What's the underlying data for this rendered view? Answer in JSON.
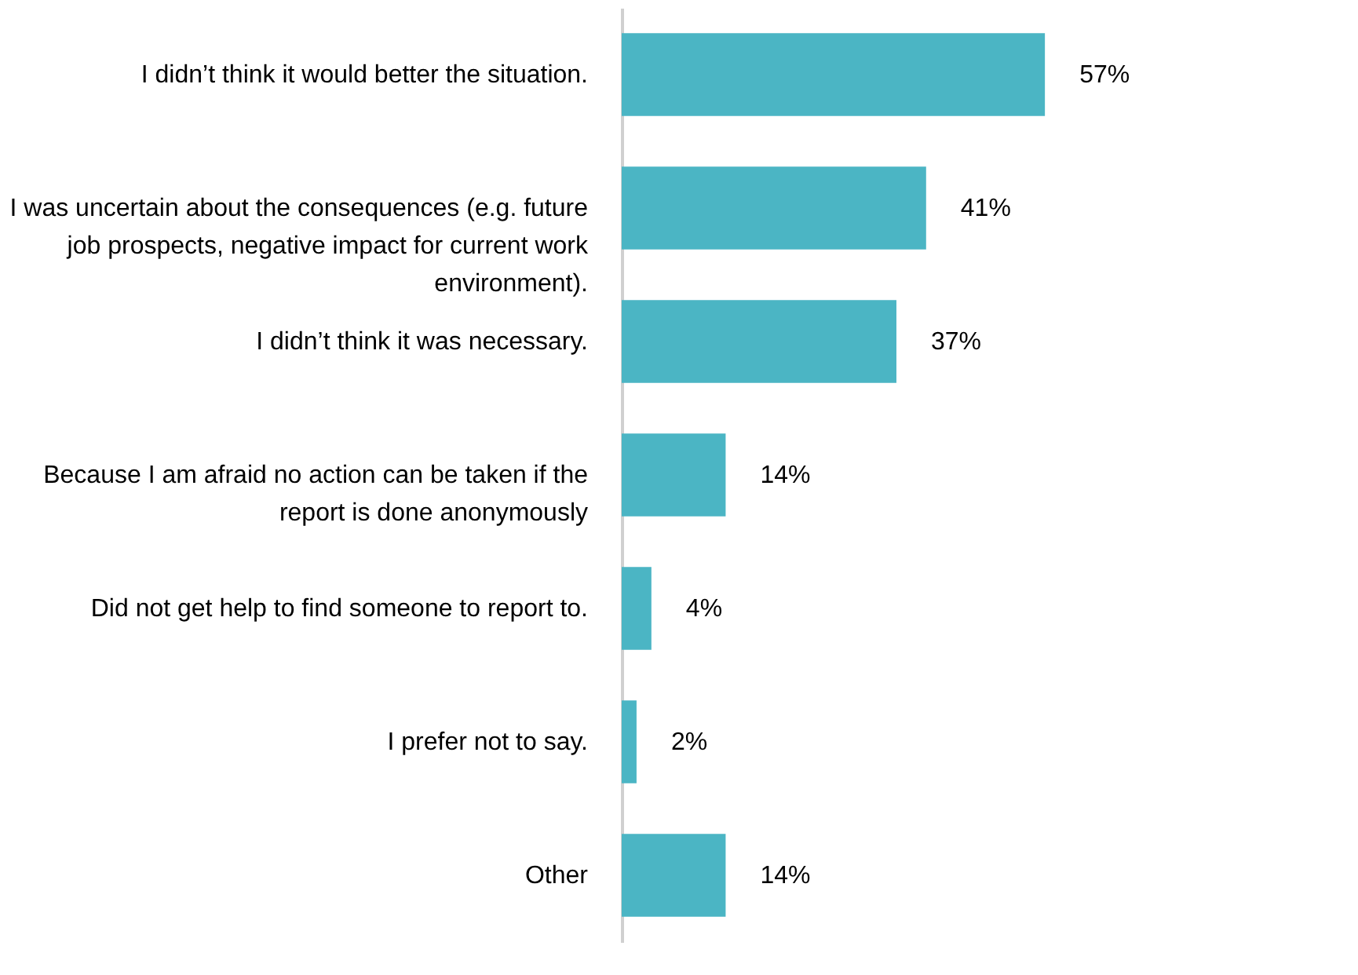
{
  "chart_data": {
    "type": "bar",
    "orientation": "horizontal",
    "categories": [
      "I didn’t think it would better the situation.",
      "I was uncertain about the consequences (e.g. future job prospects, negative impact for current work environment).",
      "I didn’t think it was necessary.",
      "Because I am afraid no action can be taken if the report is done anonymously",
      "Did not get help to find someone to report to.",
      "I prefer not to say.",
      "Other"
    ],
    "values": [
      57,
      41,
      37,
      14,
      4,
      2,
      14
    ],
    "value_labels": [
      "57%",
      "41%",
      "37%",
      "14%",
      "4%",
      "2%",
      "14%"
    ],
    "color": "#4bb5c4",
    "grid": false
  }
}
